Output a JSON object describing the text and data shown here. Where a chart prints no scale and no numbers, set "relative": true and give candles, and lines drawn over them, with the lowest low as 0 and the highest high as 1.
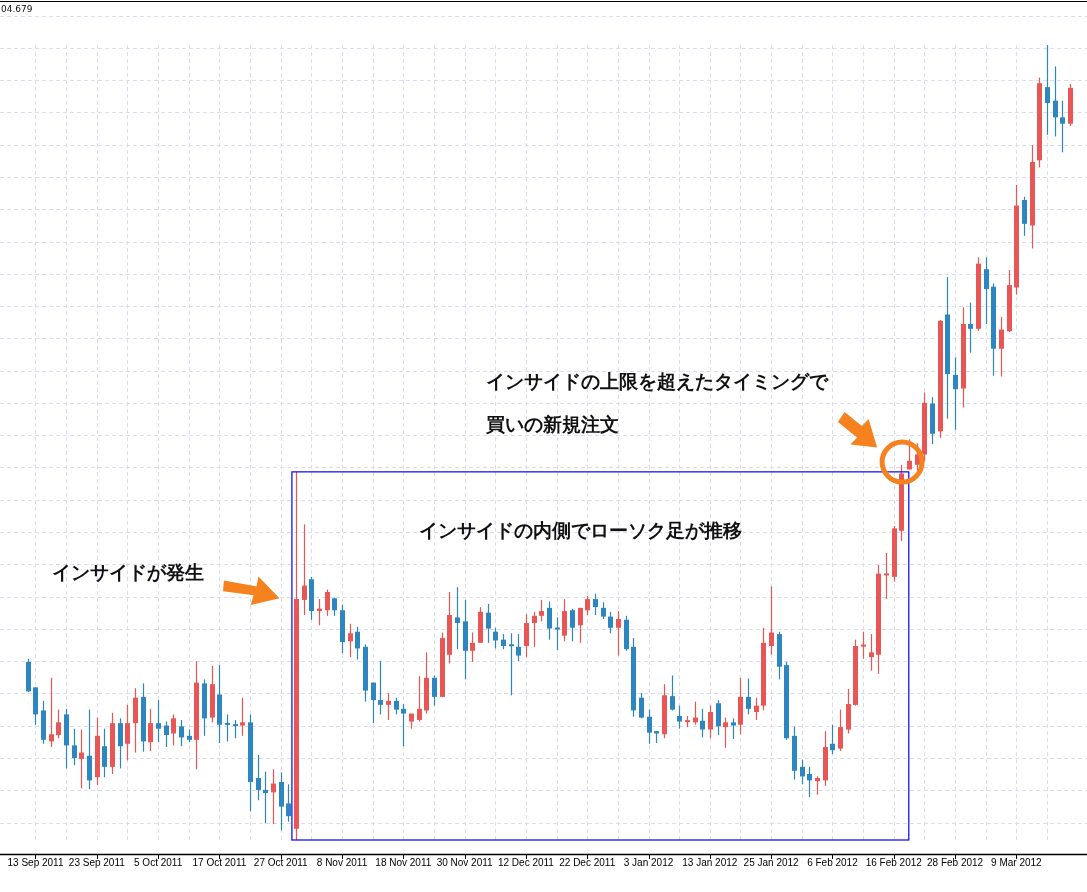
{
  "chart_data": {
    "type": "candlestick",
    "relative": true,
    "grid": true,
    "categories": [
      null,
      "13 Sep 2011",
      null,
      null,
      null,
      null,
      null,
      null,
      null,
      "23 Sep 2011",
      null,
      null,
      null,
      null,
      null,
      null,
      null,
      "5 Oct 2011",
      null,
      null,
      null,
      null,
      null,
      null,
      null,
      "17 Oct 2011",
      null,
      null,
      null,
      null,
      null,
      null,
      null,
      "27 Oct 2011",
      null,
      null,
      null,
      null,
      null,
      null,
      null,
      "8 Nov 2011",
      null,
      null,
      null,
      null,
      null,
      null,
      null,
      "18 Nov 2011",
      null,
      null,
      null,
      null,
      null,
      null,
      null,
      "30 Nov 2011",
      null,
      null,
      null,
      null,
      null,
      null,
      null,
      "12 Dec 2011",
      null,
      null,
      null,
      null,
      null,
      null,
      null,
      "22 Dec 2011",
      null,
      null,
      null,
      null,
      null,
      null,
      null,
      "3 Jan 2012",
      null,
      null,
      null,
      null,
      null,
      null,
      null,
      "13 Jan 2012",
      null,
      null,
      null,
      null,
      null,
      null,
      null,
      "25 Jan 2012",
      null,
      null,
      null,
      null,
      null,
      null,
      null,
      "6 Feb 2012",
      null,
      null,
      null,
      null,
      null,
      null,
      null,
      "16 Feb 2012",
      null,
      null,
      null,
      null,
      null,
      null,
      null,
      "28 Feb 2012",
      null,
      null,
      null,
      null,
      null,
      null,
      null,
      "9 Mar 2012",
      null,
      null,
      null,
      null,
      null,
      null,
      null
    ],
    "ohlc": [
      [
        0.224,
        0.228,
        0.186,
        0.187
      ],
      [
        0.192,
        0.192,
        0.145,
        0.158
      ],
      [
        0.163,
        0.175,
        0.121,
        0.126
      ],
      [
        0.124,
        0.204,
        0.117,
        0.133
      ],
      [
        0.132,
        0.164,
        0.128,
        0.148
      ],
      [
        0.158,
        0.165,
        0.09,
        0.119
      ],
      [
        0.119,
        0.14,
        0.094,
        0.103
      ],
      [
        0.102,
        0.139,
        0.065,
        0.11
      ],
      [
        0.106,
        0.164,
        0.064,
        0.075
      ],
      [
        0.079,
        0.154,
        0.069,
        0.131
      ],
      [
        0.118,
        0.14,
        0.079,
        0.092
      ],
      [
        0.092,
        0.16,
        0.083,
        0.147
      ],
      [
        0.147,
        0.153,
        0.09,
        0.118
      ],
      [
        0.121,
        0.17,
        0.1,
        0.147
      ],
      [
        0.147,
        0.191,
        0.11,
        0.179
      ],
      [
        0.18,
        0.197,
        0.111,
        0.124
      ],
      [
        0.123,
        0.165,
        0.112,
        0.147
      ],
      [
        0.147,
        0.176,
        0.123,
        0.14
      ],
      [
        0.144,
        0.149,
        0.117,
        0.132
      ],
      [
        0.134,
        0.158,
        0.119,
        0.153
      ],
      [
        0.143,
        0.151,
        0.118,
        0.129
      ],
      [
        0.131,
        0.139,
        0.123,
        0.126
      ],
      [
        0.126,
        0.225,
        0.089,
        0.198
      ],
      [
        0.197,
        0.202,
        0.131,
        0.153
      ],
      [
        0.154,
        0.219,
        0.148,
        0.196
      ],
      [
        0.183,
        0.22,
        0.122,
        0.145
      ],
      [
        0.147,
        0.158,
        0.124,
        0.145
      ],
      [
        0.145,
        0.151,
        0.128,
        0.144
      ],
      [
        0.144,
        0.179,
        0.131,
        0.148
      ],
      [
        0.148,
        0.158,
        0.036,
        0.073
      ],
      [
        0.078,
        0.107,
        0.05,
        0.063
      ],
      [
        0.063,
        0.086,
        0.021,
        0.059
      ],
      [
        0.06,
        0.089,
        0.02,
        0.071
      ],
      [
        0.073,
        0.085,
        0.012,
        0.042
      ],
      [
        0.046,
        0.07,
        0.023,
        0.03
      ],
      [
        0.014,
        0.463,
        0,
        0.303
      ],
      [
        0.302,
        0.397,
        0.283,
        0.32
      ],
      [
        0.328,
        0.331,
        0.277,
        0.288
      ],
      [
        0.288,
        0.303,
        0.27,
        0.291
      ],
      [
        0.289,
        0.315,
        0.282,
        0.312
      ],
      [
        0.304,
        0.305,
        0.282,
        0.289
      ],
      [
        0.289,
        0.296,
        0.235,
        0.249
      ],
      [
        0.25,
        0.272,
        0.23,
        0.26
      ],
      [
        0.262,
        0.268,
        0.227,
        0.241
      ],
      [
        0.243,
        0.246,
        0.174,
        0.188
      ],
      [
        0.198,
        0.198,
        0.147,
        0.176
      ],
      [
        0.176,
        0.225,
        0.158,
        0.17
      ],
      [
        0.17,
        0.185,
        0.151,
        0.175
      ],
      [
        0.175,
        0.179,
        0.158,
        0.164
      ],
      [
        0.165,
        0.171,
        0.118,
        0.159
      ],
      [
        0.149,
        0.159,
        0.14,
        0.159
      ],
      [
        0.151,
        0.206,
        0.149,
        0.165
      ],
      [
        0.163,
        0.236,
        0.159,
        0.204
      ],
      [
        0.204,
        0.207,
        0.169,
        0.18
      ],
      [
        0.18,
        0.261,
        0.18,
        0.254
      ],
      [
        0.233,
        0.312,
        0.222,
        0.283
      ],
      [
        0.28,
        0.318,
        0.24,
        0.273
      ],
      [
        0.275,
        0.302,
        0.202,
        0.238
      ],
      [
        0.238,
        0.261,
        0.224,
        0.248
      ],
      [
        0.248,
        0.293,
        0.248,
        0.287
      ],
      [
        0.286,
        0.297,
        0.248,
        0.266
      ],
      [
        0.262,
        0.267,
        0.241,
        0.251
      ],
      [
        0.252,
        0.259,
        0.24,
        0.244
      ],
      [
        0.246,
        0.26,
        0.182,
        0.244
      ],
      [
        0.243,
        0.259,
        0.225,
        0.232
      ],
      [
        0.244,
        0.284,
        0.23,
        0.273
      ],
      [
        0.273,
        0.287,
        0.243,
        0.282
      ],
      [
        0.282,
        0.302,
        0.275,
        0.288
      ],
      [
        0.292,
        0.3,
        0.252,
        0.266
      ],
      [
        0.267,
        0.28,
        0.239,
        0.265
      ],
      [
        0.257,
        0.303,
        0.25,
        0.288
      ],
      [
        0.289,
        0.291,
        0.25,
        0.267
      ],
      [
        0.27,
        0.292,
        0.248,
        0.292
      ],
      [
        0.289,
        0.307,
        0.283,
        0.303
      ],
      [
        0.303,
        0.31,
        0.283,
        0.293
      ],
      [
        0.292,
        0.299,
        0.278,
        0.281
      ],
      [
        0.281,
        0.287,
        0.26,
        0.267
      ],
      [
        0.267,
        0.288,
        0.232,
        0.278
      ],
      [
        0.277,
        0.282,
        0.238,
        0.24
      ],
      [
        0.243,
        0.254,
        0.155,
        0.163
      ],
      [
        0.179,
        0.185,
        0.153,
        0.154
      ],
      [
        0.155,
        0.164,
        0.121,
        0.135
      ],
      [
        0.137,
        0.137,
        0.122,
        0.134
      ],
      [
        0.133,
        0.196,
        0.128,
        0.182
      ],
      [
        0.181,
        0.207,
        0.163,
        0.164
      ],
      [
        0.156,
        0.169,
        0.14,
        0.149
      ],
      [
        0.149,
        0.156,
        0.142,
        0.15
      ],
      [
        0.148,
        0.174,
        0.145,
        0.154
      ],
      [
        0.15,
        0.165,
        0.129,
        0.139
      ],
      [
        0.139,
        0.169,
        0.128,
        0.161
      ],
      [
        0.172,
        0.176,
        0.132,
        0.143
      ],
      [
        0.142,
        0.154,
        0.116,
        0.148
      ],
      [
        0.148,
        0.153,
        0.127,
        0.144
      ],
      [
        0.145,
        0.204,
        0.133,
        0.18
      ],
      [
        0.18,
        0.203,
        0.158,
        0.165
      ],
      [
        0.161,
        0.179,
        0.151,
        0.169
      ],
      [
        0.169,
        0.267,
        0.163,
        0.248
      ],
      [
        0.244,
        0.319,
        0.233,
        0.261
      ],
      [
        0.259,
        0.262,
        0.202,
        0.218
      ],
      [
        0.22,
        0.224,
        0.126,
        0.128
      ],
      [
        0.131,
        0.143,
        0.076,
        0.087
      ],
      [
        0.092,
        0.101,
        0.07,
        0.08
      ],
      [
        0.083,
        0.092,
        0.054,
        0.075
      ],
      [
        0.074,
        0.08,
        0.057,
        0.078
      ],
      [
        0.075,
        0.137,
        0.068,
        0.117
      ],
      [
        0.121,
        0.145,
        0.108,
        0.113
      ],
      [
        0.115,
        0.164,
        0.112,
        0.142
      ],
      [
        0.139,
        0.19,
        0.134,
        0.171
      ],
      [
        0.17,
        0.252,
        0.169,
        0.244
      ],
      [
        0.244,
        0.262,
        0.228,
        0.245
      ],
      [
        0.23,
        0.259,
        0.213,
        0.236
      ],
      [
        0.233,
        0.346,
        0.209,
        0.335
      ],
      [
        0.333,
        0.361,
        0.303,
        0.335
      ],
      [
        0.331,
        0.395,
        0.325,
        0.392
      ],
      [
        0.389,
        0.472,
        0.376,
        0.461
      ],
      [
        0.466,
        0.504,
        0.466,
        0.477
      ],
      [
        0.472,
        0.499,
        0.464,
        0.485
      ],
      [
        0.485,
        0.563,
        0.477,
        0.55
      ],
      [
        0.549,
        0.557,
        0.498,
        0.511
      ],
      [
        0.514,
        0.654,
        0.506,
        0.653
      ],
      [
        0.661,
        0.708,
        0.53,
        0.586
      ],
      [
        0.585,
        0.607,
        0.516,
        0.567
      ],
      [
        0.568,
        0.67,
        0.544,
        0.649
      ],
      [
        0.649,
        0.676,
        0.613,
        0.643
      ],
      [
        0.643,
        0.733,
        0.64,
        0.725
      ],
      [
        0.718,
        0.733,
        0.649,
        0.693
      ],
      [
        0.696,
        0.7,
        0.584,
        0.618
      ],
      [
        0.618,
        0.658,
        0.583,
        0.642
      ],
      [
        0.64,
        0.717,
        0.639,
        0.698
      ],
      [
        0.695,
        0.824,
        0.686,
        0.798
      ],
      [
        0.805,
        0.809,
        0.76,
        0.775
      ],
      [
        0.773,
        0.874,
        0.744,
        0.853
      ],
      [
        0.855,
        0.959,
        0.846,
        0.952
      ],
      [
        0.947,
        1,
        0.887,
        0.927
      ],
      [
        0.93,
        0.973,
        0.885,
        0.909
      ],
      [
        0.909,
        0.93,
        0.865,
        0.901
      ],
      [
        0.901,
        0.951,
        0.898,
        0.946
      ]
    ],
    "colors": [
      "#2e86c1",
      "#2e86c1",
      "#2e86c1",
      "#e95656",
      "#e95656",
      "#2e86c1",
      "#2e86c1",
      "#e95656",
      "#2e86c1",
      "#e95656",
      "#2e86c1",
      "#e95656",
      "#2e86c1",
      "#e95656",
      "#e95656",
      "#2e86c1",
      "#e95656",
      "#2e86c1",
      "#2e86c1",
      "#e95656",
      "#2e86c1",
      "#2e86c1",
      "#e95656",
      "#2e86c1",
      "#e95656",
      "#2e86c1",
      "#2e86c1",
      "#2e86c1",
      "#e95656",
      "#2e86c1",
      "#2e86c1",
      "#2e86c1",
      "#e95656",
      "#2e86c1",
      "#2e86c1",
      "#e95656",
      "#e95656",
      "#2e86c1",
      "#e95656",
      "#e95656",
      "#2e86c1",
      "#2e86c1",
      "#e95656",
      "#2e86c1",
      "#2e86c1",
      "#2e86c1",
      "#2e86c1",
      "#e95656",
      "#2e86c1",
      "#2e86c1",
      "#e95656",
      "#e95656",
      "#e95656",
      "#2e86c1",
      "#e95656",
      "#e95656",
      "#2e86c1",
      "#2e86c1",
      "#e95656",
      "#e95656",
      "#2e86c1",
      "#2e86c1",
      "#2e86c1",
      "#2e86c1",
      "#2e86c1",
      "#e95656",
      "#e95656",
      "#e95656",
      "#2e86c1",
      "#2e86c1",
      "#e95656",
      "#2e86c1",
      "#e95656",
      "#e95656",
      "#2e86c1",
      "#2e86c1",
      "#2e86c1",
      "#e95656",
      "#2e86c1",
      "#2e86c1",
      "#2e86c1",
      "#2e86c1",
      "#2e86c1",
      "#e95656",
      "#2e86c1",
      "#2e86c1",
      "#e95656",
      "#e95656",
      "#2e86c1",
      "#e95656",
      "#2e86c1",
      "#e95656",
      "#2e86c1",
      "#e95656",
      "#2e86c1",
      "#e95656",
      "#e95656",
      "#e95656",
      "#2e86c1",
      "#2e86c1",
      "#2e86c1",
      "#2e86c1",
      "#2e86c1",
      "#e95656",
      "#e95656",
      "#2e86c1",
      "#e95656",
      "#e95656",
      "#e95656",
      "#e95656",
      "#e95656",
      "#e95656",
      "#e95656",
      "#e95656",
      "#e95656",
      "#e95656",
      "#e95656",
      "#e95656",
      "#2e86c1",
      "#e95656",
      "#2e86c1",
      "#2e86c1",
      "#e95656",
      "#2e86c1",
      "#e95656",
      "#2e86c1",
      "#2e86c1",
      "#e95656",
      "#e95656",
      "#e95656",
      "#2e86c1",
      "#e95656",
      "#e95656",
      "#2e86c1",
      "#2e86c1",
      "#2e86c1",
      "#e95656"
    ],
    "annotations": [
      "04.679",
      "インサイドが発生",
      "インサイドの内側でローソク足が推移",
      "インサイドの上限を超えたタイミングで",
      "買いの新規注文"
    ]
  }
}
